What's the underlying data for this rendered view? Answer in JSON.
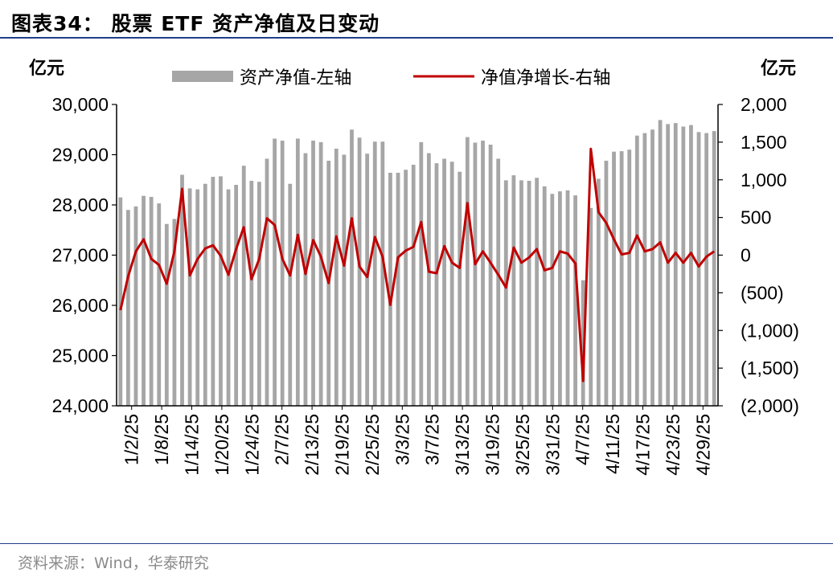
{
  "header": {
    "title": "图表34：  股票 ETF 资产净值及日变动"
  },
  "footer": {
    "source": "资料来源：Wind，华泰研究"
  },
  "colors": {
    "bars": "#a6a6a6",
    "line": "#c00000",
    "rule": "#1f3f8a"
  },
  "chart_data": {
    "type": "bar+line",
    "y_left": {
      "unit": "亿元",
      "min": 24000,
      "max": 30000,
      "ticks": [
        "24,000",
        "25,000",
        "26,000",
        "27,000",
        "28,000",
        "29,000",
        "30,000"
      ]
    },
    "y_right": {
      "unit": "亿元",
      "min": -2000,
      "max": 2000,
      "ticks": [
        "(2,000)",
        "(1,500)",
        "(1,000)",
        "(500)",
        "0",
        "500",
        "1,000",
        "1,500",
        "2,000"
      ]
    },
    "x_ticks": [
      "1/2/25",
      "1/8/25",
      "1/14/25",
      "1/20/25",
      "1/24/25",
      "2/7/25",
      "2/13/25",
      "2/19/25",
      "2/25/25",
      "3/3/25",
      "3/7/25",
      "3/13/25",
      "3/19/25",
      "3/25/25",
      "3/31/25",
      "4/7/25",
      "4/11/25",
      "4/17/25",
      "4/23/25",
      "4/29/25"
    ],
    "legend": {
      "position": "top",
      "items": [
        "资产净值-左轴",
        "净值净增长-右轴"
      ]
    },
    "series": [
      {
        "name": "资产净值-左轴",
        "type": "bar",
        "values": [
          28150,
          27900,
          27970,
          28180,
          28160,
          28030,
          27620,
          27720,
          28600,
          28330,
          28310,
          28420,
          28560,
          28570,
          28310,
          28400,
          28780,
          28480,
          28460,
          28920,
          29320,
          29280,
          28420,
          29320,
          29030,
          29280,
          29250,
          28880,
          29120,
          29000,
          29500,
          29340,
          29020,
          29260,
          29260,
          28640,
          28640,
          28700,
          28800,
          29250,
          29030,
          28830,
          28920,
          28860,
          28660,
          29350,
          29240,
          29280,
          29200,
          28920,
          28490,
          28590,
          28490,
          28480,
          28540,
          28370,
          28220,
          28270,
          28290,
          28190,
          26500,
          27940,
          28520,
          28880,
          29060,
          29070,
          29100,
          29380,
          29430,
          29500,
          29690,
          29610,
          29630,
          29560,
          29590,
          29450,
          29430,
          29470
        ]
      },
      {
        "name": "净值净增长-右轴",
        "type": "line",
        "values": [
          -730,
          -280,
          50,
          210,
          -50,
          -130,
          -380,
          50,
          880,
          -270,
          -50,
          90,
          130,
          -10,
          -260,
          80,
          370,
          -320,
          -50,
          490,
          400,
          -50,
          -270,
          270,
          -250,
          200,
          -20,
          -370,
          250,
          -140,
          490,
          -150,
          -290,
          240,
          -20,
          -660,
          -30,
          60,
          110,
          440,
          -220,
          -240,
          120,
          -100,
          -170,
          690,
          -120,
          50,
          -100,
          -260,
          -430,
          100,
          -100,
          -30,
          80,
          -200,
          -170,
          50,
          20,
          -110,
          -1670,
          1410,
          570,
          430,
          210,
          10,
          30,
          260,
          50,
          80,
          170,
          -100,
          30,
          -100,
          30,
          -150,
          -20,
          50
        ]
      }
    ]
  }
}
